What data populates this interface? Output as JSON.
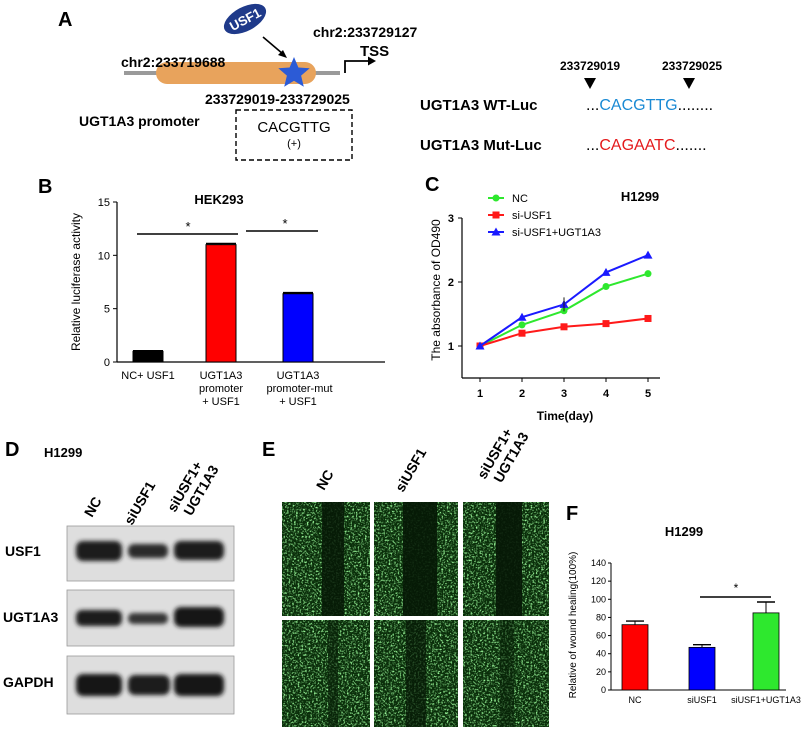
{
  "panel_letters": [
    "A",
    "B",
    "C",
    "D",
    "E",
    "F"
  ],
  "panel_a": {
    "protein_label": "USF1",
    "coord_left": "chr2:233719688",
    "coord_right": "chr2:233729127",
    "tss_label": "TSS",
    "site_range": "233729019-233729025",
    "promoter_label": "UGT1A3 promoter",
    "motif": "CACGTTG",
    "strand": "(+)",
    "marker_left": "233729019",
    "marker_right": "233729025",
    "wt_label": "UGT1A3 WT-Luc",
    "wt_seq": "CACGTTG",
    "mut_label": "UGT1A3 Mut-Luc",
    "mut_seq": "CAGAATC",
    "seq_prefix": "...",
    "seq_suffix": "........",
    "seq_suffix_mut": ".......",
    "colors": {
      "ellipse": "#e8a35c",
      "star": "#2c5bd6",
      "usf1": "#1f3a8a",
      "wt": "#1a8ad4",
      "mut": "#e41a1c"
    }
  },
  "chart_data": [
    {
      "type": "bar",
      "title": "HEK293",
      "ylabel": "Relative luciferase activity",
      "ylim": [
        0,
        15
      ],
      "yticks": [
        "0",
        "5",
        "10",
        "15"
      ],
      "categories": [
        [
          "NC+ USF1"
        ],
        [
          "UGT1A3",
          "promoter",
          "+ USF1"
        ],
        [
          "UGT1A3",
          " promoter-mut",
          "+ USF1"
        ]
      ],
      "values": [
        1.0,
        11.0,
        6.4
      ],
      "errors": [
        0.05,
        0.1,
        0.1
      ],
      "colors": [
        "#000000",
        "#ff0000",
        "#0000ff"
      ],
      "significance": [
        "*",
        "*"
      ]
    },
    {
      "type": "line",
      "title": "H1299",
      "xlabel": "Time(day)",
      "ylabel": "The absorbance of OD490",
      "x": [
        1,
        2,
        3,
        4,
        5
      ],
      "xticks": [
        "1",
        "2",
        "3",
        "4",
        "5"
      ],
      "yticks": [
        "1",
        "2",
        "3"
      ],
      "ylim": [
        0.5,
        3
      ],
      "series": [
        {
          "name": "NC",
          "values": [
            1.0,
            1.33,
            1.55,
            1.93,
            2.13
          ],
          "color": "#2ee82e",
          "marker": "circle"
        },
        {
          "name": "si-USF1",
          "values": [
            1.0,
            1.2,
            1.3,
            1.35,
            1.43
          ],
          "color": "#ff1a1a",
          "marker": "square"
        },
        {
          "name": "si-USF1+UGT1A3",
          "values": [
            1.0,
            1.45,
            1.65,
            2.15,
            2.42
          ],
          "color": "#1a1aff",
          "marker": "triangle"
        }
      ]
    },
    {
      "type": "bar",
      "title": "H1299",
      "ylabel": "Relative of wound healing(100%)",
      "ylim": [
        0,
        140
      ],
      "yticks": [
        "0",
        "20",
        "40",
        "60",
        "80",
        "100",
        "120",
        "140"
      ],
      "categories": [
        "NC",
        "siUSF1",
        "siUSF1+UGT1A3"
      ],
      "values": [
        72,
        47,
        85
      ],
      "errors": [
        4,
        3,
        12
      ],
      "colors": [
        "#ff0000",
        "#0000ff",
        "#2ee82e"
      ],
      "significance": [
        "*"
      ]
    }
  ],
  "panel_d": {
    "cell_line": "H1299",
    "lanes": [
      "NC",
      "siUSF1",
      "siUSF1+\nUGT1A3"
    ],
    "blots": [
      "USF1",
      "UGT1A3",
      "GAPDH"
    ]
  },
  "panel_e": {
    "lanes": [
      "NC",
      "siUSF1",
      "siUSF1+\nUGT1A3"
    ]
  }
}
